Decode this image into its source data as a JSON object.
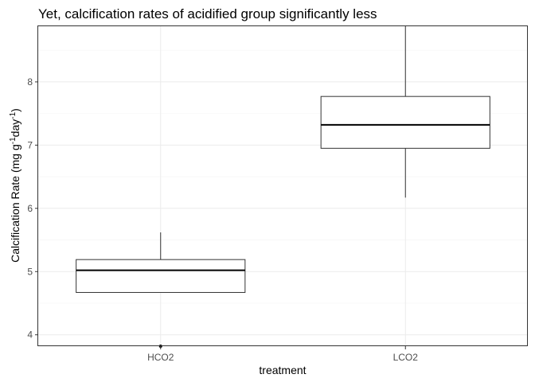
{
  "chart_data": {
    "type": "boxplot",
    "title": "Yet, calcification rates of acidified group significantly less",
    "xlabel": "treatment",
    "ylabel": {
      "prefix": "Calcification Rate (mg g",
      "exp1": "-1",
      "mid": "day",
      "exp2": "-1",
      "suffix": ")"
    },
    "ylim": [
      3.82,
      8.88
    ],
    "yticks": [
      4,
      5,
      6,
      7,
      8
    ],
    "categories": [
      "HCO2",
      "LCO2"
    ],
    "boxes": [
      {
        "category": "HCO2",
        "min": 4.67,
        "q1": 4.67,
        "median": 5.02,
        "q3": 5.19,
        "max": 5.62,
        "outliers": [
          3.8
        ]
      },
      {
        "category": "LCO2",
        "min": 6.17,
        "q1": 6.95,
        "median": 7.32,
        "q3": 7.77,
        "max": 8.88,
        "outliers": []
      }
    ],
    "grid": true,
    "legend": "none"
  }
}
